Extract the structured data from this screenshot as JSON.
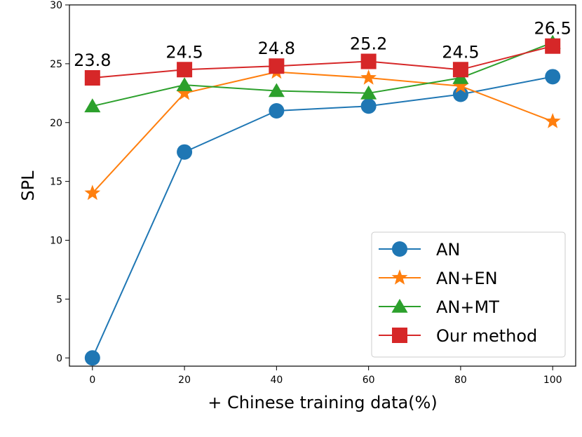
{
  "chart_data": {
    "type": "line",
    "title": "",
    "xlabel": "+ Chinese training data(%)",
    "ylabel": "SPL",
    "x": [
      0,
      20,
      40,
      60,
      80,
      100
    ],
    "xticks": [
      "0",
      "20",
      "40",
      "60",
      "80",
      "100"
    ],
    "yticks": [
      "0",
      "5",
      "10",
      "15",
      "20",
      "25",
      "30"
    ],
    "xlim": [
      -5,
      105
    ],
    "ylim": [
      -0.7,
      30
    ],
    "grid": false,
    "legend_position": "lower-right",
    "series": [
      {
        "name": "AN",
        "marker": "circle",
        "color": "#1f77b4",
        "values": [
          0.0,
          17.5,
          21.0,
          21.4,
          22.4,
          23.9
        ]
      },
      {
        "name": "AN+EN",
        "marker": "star",
        "color": "#ff7f0e",
        "values": [
          14.0,
          22.5,
          24.3,
          23.8,
          23.1,
          20.1
        ]
      },
      {
        "name": "AN+MT",
        "marker": "triangle",
        "color": "#2ca02c",
        "values": [
          21.4,
          23.2,
          22.7,
          22.5,
          23.8,
          26.8
        ]
      },
      {
        "name": "Our method",
        "marker": "square",
        "color": "#d62728",
        "values": [
          23.8,
          24.5,
          24.8,
          25.2,
          24.5,
          26.5
        ]
      }
    ],
    "annotations": [
      "23.8",
      "24.5",
      "24.8",
      "25.2",
      "24.5",
      "26.5"
    ]
  }
}
